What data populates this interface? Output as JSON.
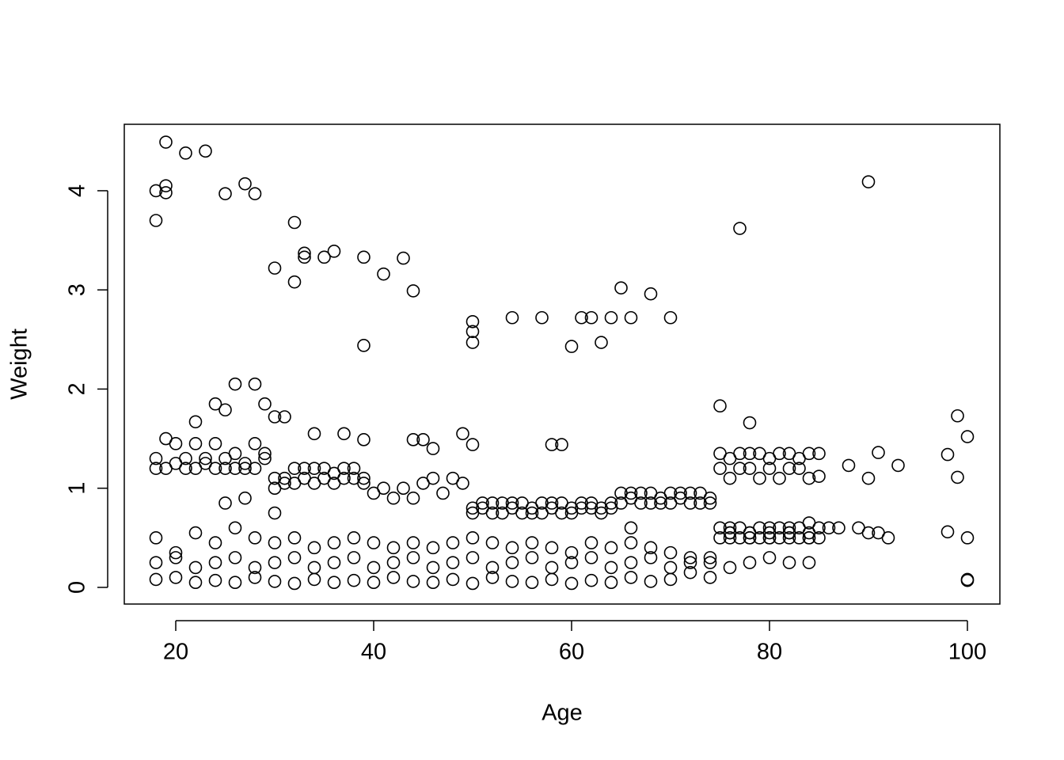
{
  "chart_data": {
    "type": "scatter",
    "x_label": "Age",
    "y_label": "Weight",
    "color": "#000000",
    "xlim": [
      14.8,
      103.28
    ],
    "ylim": [
      -0.168,
      4.67
    ],
    "xticks": [
      20,
      40,
      60,
      80,
      100
    ],
    "yticks": [
      0,
      1,
      2,
      3,
      4
    ],
    "series": [
      {
        "x": [
          18,
          18,
          19,
          19,
          19,
          21,
          23,
          25,
          27,
          28,
          32,
          30,
          32,
          33,
          33,
          35,
          36,
          39,
          41,
          43,
          44,
          39,
          50,
          50,
          50,
          54,
          57,
          60,
          61,
          62,
          63,
          64,
          65,
          66,
          68,
          70,
          77,
          90
        ],
        "values": [
          4.0,
          3.7,
          4.49,
          4.05,
          3.98,
          4.38,
          4.4,
          3.97,
          4.07,
          3.97,
          3.68,
          3.22,
          3.08,
          3.37,
          3.33,
          3.33,
          3.39,
          3.33,
          3.16,
          3.32,
          2.99,
          2.44,
          2.68,
          2.58,
          2.47,
          2.72,
          2.72,
          2.43,
          2.72,
          2.72,
          2.47,
          2.72,
          3.02,
          2.72,
          2.96,
          2.72,
          3.62,
          4.09
        ]
      },
      {
        "x": [
          24,
          25,
          26,
          28,
          29,
          30,
          31,
          22,
          34,
          37,
          39,
          44,
          45,
          46,
          49,
          50,
          58,
          59,
          75,
          78,
          99,
          100,
          91,
          93,
          98,
          99,
          90,
          88
        ],
        "values": [
          1.85,
          1.79,
          2.05,
          2.05,
          1.85,
          1.72,
          1.72,
          1.67,
          1.55,
          1.55,
          1.49,
          1.49,
          1.49,
          1.4,
          1.55,
          1.44,
          1.44,
          1.44,
          1.83,
          1.66,
          1.73,
          1.52,
          1.36,
          1.23,
          1.34,
          1.11,
          1.1,
          1.23
        ]
      },
      {
        "x": [
          18,
          19,
          20,
          21,
          22,
          23,
          24,
          25,
          26,
          27,
          28,
          29
        ],
        "values": [
          1.3,
          1.5,
          1.45,
          1.3,
          1.45,
          1.25,
          1.45,
          1.3,
          1.35,
          1.2,
          1.45,
          1.3
        ]
      },
      {
        "x": [
          18,
          19,
          20,
          21,
          22,
          23,
          24,
          25,
          26,
          27,
          28,
          29
        ],
        "values": [
          1.2,
          1.2,
          1.25,
          1.2,
          1.2,
          1.3,
          1.2,
          1.2,
          1.2,
          1.25,
          1.2,
          1.35
        ]
      },
      {
        "x": [
          30,
          31,
          32,
          33,
          34,
          35,
          36,
          37,
          38,
          39
        ],
        "values": [
          1.1,
          1.05,
          1.2,
          1.1,
          1.2,
          1.1,
          1.15,
          1.2,
          1.1,
          1.1
        ]
      },
      {
        "x": [
          30,
          31,
          32,
          33,
          34,
          35,
          36,
          37,
          38,
          39
        ],
        "values": [
          1.0,
          1.1,
          1.05,
          1.2,
          1.05,
          1.2,
          1.05,
          1.1,
          1.2,
          1.05
        ]
      },
      {
        "x": [
          40,
          41,
          42,
          43,
          44,
          45,
          46,
          47,
          48,
          49
        ],
        "values": [
          0.95,
          1.0,
          0.9,
          1.0,
          0.9,
          1.05,
          1.1,
          0.95,
          1.1,
          1.05
        ]
      },
      {
        "x": [
          50,
          51,
          52,
          53,
          54,
          55,
          56,
          57,
          58,
          59,
          60,
          61,
          62,
          63,
          64
        ],
        "values": [
          0.8,
          0.85,
          0.75,
          0.85,
          0.8,
          0.85,
          0.75,
          0.85,
          0.8,
          0.85,
          0.8,
          0.85,
          0.8,
          0.75,
          0.85
        ]
      },
      {
        "x": [
          50,
          51,
          52,
          53,
          54,
          55,
          56,
          57,
          58,
          59,
          60,
          61,
          62,
          63,
          64
        ],
        "values": [
          0.75,
          0.8,
          0.85,
          0.75,
          0.85,
          0.75,
          0.8,
          0.75,
          0.85,
          0.75,
          0.75,
          0.8,
          0.85,
          0.8,
          0.8
        ]
      },
      {
        "x": [
          65,
          66,
          67,
          68,
          69,
          70,
          71,
          72,
          73,
          74
        ],
        "values": [
          0.95,
          0.9,
          0.95,
          0.85,
          0.9,
          0.95,
          0.9,
          0.95,
          0.85,
          0.9
        ]
      },
      {
        "x": [
          65,
          66,
          67,
          68,
          69,
          70,
          71,
          72,
          73,
          74
        ],
        "values": [
          0.85,
          0.95,
          0.85,
          0.95,
          0.85,
          0.85,
          0.95,
          0.85,
          0.95,
          0.85
        ]
      },
      {
        "x": [
          75,
          76,
          77,
          78,
          79,
          80,
          81,
          82,
          83,
          84,
          85
        ],
        "values": [
          1.35,
          1.3,
          1.35,
          1.2,
          1.35,
          1.3,
          1.35,
          1.35,
          1.3,
          1.35,
          1.12
        ]
      },
      {
        "x": [
          75,
          76,
          77,
          78,
          79,
          80,
          81,
          82,
          83,
          84,
          85
        ],
        "values": [
          1.2,
          1.1,
          1.2,
          1.35,
          1.1,
          1.2,
          1.1,
          1.2,
          1.2,
          1.1,
          1.35
        ]
      },
      {
        "x": [
          75,
          76,
          77,
          78,
          79,
          80,
          81,
          82,
          83,
          84,
          85
        ],
        "values": [
          0.6,
          0.55,
          0.6,
          0.55,
          0.6,
          0.55,
          0.6,
          0.55,
          0.6,
          0.55,
          0.6
        ]
      },
      {
        "x": [
          75,
          76,
          77,
          78,
          79,
          80,
          81,
          82,
          83,
          84,
          85
        ],
        "values": [
          0.5,
          0.5,
          0.5,
          0.5,
          0.5,
          0.5,
          0.5,
          0.5,
          0.5,
          0.5,
          0.5
        ]
      },
      {
        "x": [
          86,
          87,
          89,
          90,
          91,
          92,
          98,
          100,
          100,
          100,
          30,
          25,
          27,
          66
        ],
        "values": [
          0.6,
          0.6,
          0.6,
          0.55,
          0.55,
          0.5,
          0.56,
          0.5,
          0.07,
          0.08,
          0.75,
          0.85,
          0.9,
          0.6
        ]
      },
      {
        "x": [
          18,
          20,
          22,
          24,
          26,
          28,
          30,
          32,
          34,
          36,
          38,
          40,
          42,
          44,
          46,
          48,
          50,
          52,
          54,
          56,
          58,
          60,
          62,
          64,
          66,
          68,
          70,
          72,
          74,
          76,
          78,
          80,
          82,
          84
        ],
        "values": [
          0.08,
          0.1,
          0.05,
          0.07,
          0.05,
          0.1,
          0.06,
          0.04,
          0.08,
          0.05,
          0.07,
          0.05,
          0.1,
          0.06,
          0.05,
          0.08,
          0.04,
          0.1,
          0.06,
          0.05,
          0.08,
          0.04,
          0.07,
          0.05,
          0.1,
          0.06,
          0.08,
          0.15,
          0.1,
          0.2,
          0.25,
          0.3,
          0.25,
          0.25
        ]
      },
      {
        "x": [
          18,
          20,
          22,
          24,
          26,
          28,
          30,
          32,
          34,
          36,
          38,
          40,
          42,
          44,
          46,
          48,
          50,
          52,
          54,
          56,
          58,
          60,
          62,
          64,
          66,
          68,
          70,
          72,
          74,
          76,
          78,
          80,
          82,
          84
        ],
        "values": [
          0.25,
          0.3,
          0.2,
          0.25,
          0.3,
          0.2,
          0.25,
          0.3,
          0.2,
          0.25,
          0.3,
          0.2,
          0.25,
          0.3,
          0.2,
          0.25,
          0.3,
          0.2,
          0.25,
          0.3,
          0.2,
          0.25,
          0.3,
          0.2,
          0.25,
          0.3,
          0.2,
          0.3,
          0.25,
          0.55,
          0.5,
          0.5,
          0.55,
          0.5
        ]
      },
      {
        "x": [
          18,
          20,
          22,
          24,
          26,
          28,
          30,
          32,
          34,
          36,
          38,
          40,
          42,
          44,
          46,
          48,
          50,
          52,
          54,
          56,
          58,
          60,
          62,
          64,
          66,
          68,
          70,
          72,
          74,
          76,
          78,
          80,
          82,
          84
        ],
        "values": [
          0.5,
          0.35,
          0.55,
          0.45,
          0.6,
          0.5,
          0.45,
          0.5,
          0.4,
          0.45,
          0.5,
          0.45,
          0.4,
          0.45,
          0.4,
          0.45,
          0.5,
          0.45,
          0.4,
          0.45,
          0.4,
          0.35,
          0.45,
          0.4,
          0.45,
          0.4,
          0.35,
          0.25,
          0.3,
          0.6,
          0.55,
          0.6,
          0.6,
          0.65
        ]
      }
    ]
  }
}
